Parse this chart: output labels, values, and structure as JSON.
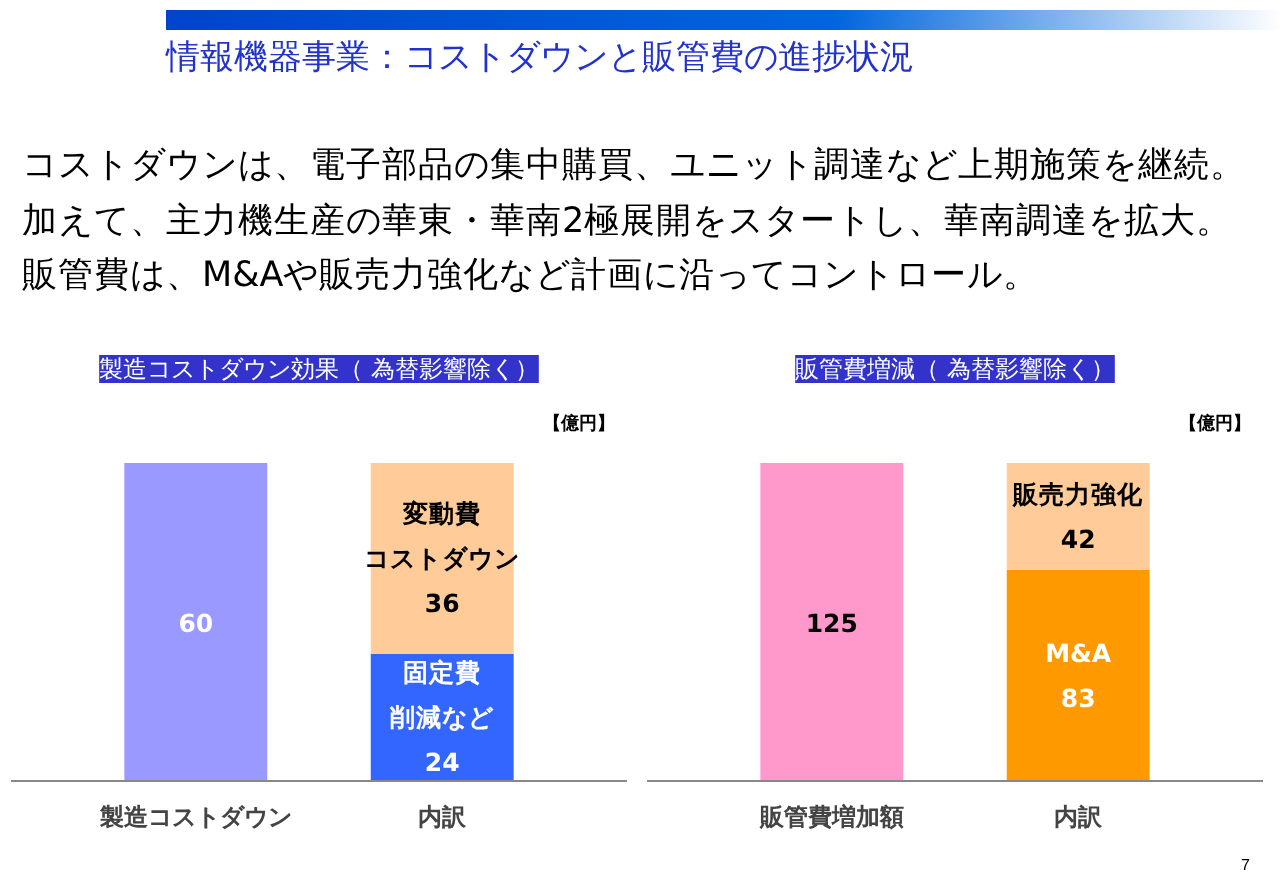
{
  "chart_data": [
    {
      "type": "other",
      "title": "情報機器事業：コストダウンと販管費の進捗状況",
      "annotations": [
        "コストダウンは、電子部品の集中購買、ユニット調達など上期施策を継続。",
        "加えて、主力機生産の華東・華南2極展開をスタートし、華南調達を拡大。",
        "販管費は、M&Aや販売力強化など計画に沿ってコントロール。",
        "7"
      ]
    },
    {
      "type": "bar",
      "title": "製造コストダウン効果（ 為替影響除く）",
      "categories": [
        "製造コストダウン",
        "内訳"
      ],
      "stacked": true,
      "data_labels": true,
      "annotations": [
        "【億円】"
      ],
      "series": [
        {
          "color": "#9999ff",
          "values": [
            60,
            null
          ]
        },
        {
          "name": "固定費削減など",
          "color": "#3366ff",
          "values": [
            null,
            24
          ]
        },
        {
          "name": "変動費コストダウン",
          "color": "#ffcc99",
          "values": [
            null,
            36
          ]
        }
      ]
    },
    {
      "type": "bar",
      "title": "販管費増減（ 為替影響除く）",
      "categories": [
        "販管費増加額",
        "内訳"
      ],
      "stacked": true,
      "data_labels": true,
      "annotations": [
        "【億円】"
      ],
      "series": [
        {
          "color": "#ff99cc",
          "values": [
            125,
            null
          ]
        },
        {
          "name": "M&A",
          "color": "#ff9900",
          "values": [
            null,
            83
          ]
        },
        {
          "name": "販売力強化",
          "color": "#ffcc99",
          "values": [
            null,
            42
          ]
        }
      ]
    }
  ]
}
